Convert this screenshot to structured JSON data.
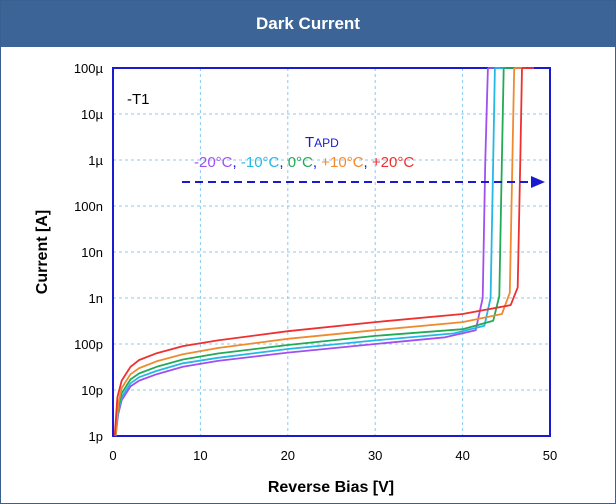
{
  "header": {
    "title": "Dark Current"
  },
  "chart_data": {
    "type": "line",
    "title": "Dark Current",
    "xlabel": "Reverse Bias [V]",
    "ylabel": "Current [A]",
    "xlim": [
      0,
      50
    ],
    "ylim": [
      1e-12,
      0.0001
    ],
    "y_scale": "log",
    "grid": true,
    "x_ticks": [
      0,
      10,
      20,
      30,
      40,
      50
    ],
    "y_ticks": [
      {
        "value": 0.0001,
        "label": "100µ"
      },
      {
        "value": 1e-05,
        "label": "10µ"
      },
      {
        "value": 1e-06,
        "label": "1µ"
      },
      {
        "value": 1e-07,
        "label": "100n"
      },
      {
        "value": 1e-08,
        "label": "10n"
      },
      {
        "value": 1e-09,
        "label": "1n"
      },
      {
        "value": 1e-10,
        "label": "100p"
      },
      {
        "value": 1e-11,
        "label": "10p"
      },
      {
        "value": 1e-12,
        "label": "1p"
      }
    ],
    "annotations": {
      "model": "-T1",
      "legend_title_main": "T",
      "legend_title_sub": "APD",
      "arrow": "increasing temperature shifts breakdown to higher voltage"
    },
    "series": [
      {
        "name": "-20°C",
        "color": "#a050f0",
        "x": [
          0.3,
          0.6,
          1,
          2,
          3,
          5,
          8,
          12,
          20,
          30,
          38,
          41.5,
          42.3,
          42.6,
          42.9
        ],
        "y": [
          1e-12,
          3e-12,
          6e-12,
          1.2e-11,
          1.6e-11,
          2.2e-11,
          3.2e-11,
          4.3e-11,
          6.5e-11,
          1e-10,
          1.4e-10,
          2e-10,
          1e-09,
          1e-06,
          0.0001
        ]
      },
      {
        "name": "-10°C",
        "color": "#25b8e6",
        "x": [
          0.3,
          0.6,
          1,
          2,
          3,
          5,
          8,
          12,
          20,
          30,
          39,
          42.5,
          43.2,
          43.5,
          43.7
        ],
        "y": [
          1e-12,
          3.5e-12,
          7e-12,
          1.4e-11,
          1.9e-11,
          2.6e-11,
          3.8e-11,
          5e-11,
          7.8e-11,
          1.2e-10,
          1.7e-10,
          2.5e-10,
          1e-09,
          1e-06,
          0.0001
        ]
      },
      {
        "name": "0°C",
        "color": "#22aa55",
        "x": [
          0.3,
          0.6,
          1,
          2,
          3,
          5,
          8,
          12,
          20,
          30,
          40,
          43.5,
          44.2,
          44.5,
          44.7
        ],
        "y": [
          1e-12,
          4e-12,
          8.5e-12,
          1.7e-11,
          2.3e-11,
          3.2e-11,
          4.6e-11,
          6.2e-11,
          9.5e-11,
          1.5e-10,
          2.1e-10,
          3.2e-10,
          1.1e-09,
          1e-06,
          0.0001
        ]
      },
      {
        "name": "+10°C",
        "color": "#f08a30",
        "x": [
          0.3,
          0.6,
          1,
          2,
          3,
          5,
          8,
          12,
          20,
          30,
          40,
          44.5,
          45.4,
          45.7,
          45.9
        ],
        "y": [
          1e-12,
          5e-12,
          1.1e-11,
          2.2e-11,
          3e-11,
          4.2e-11,
          6e-11,
          8.2e-11,
          1.3e-10,
          2e-10,
          3e-10,
          4.5e-10,
          1.3e-09,
          1e-06,
          0.0001
        ]
      },
      {
        "name": "+20°C",
        "color": "#ee3030",
        "x": [
          0.2,
          0.5,
          1,
          2,
          3,
          5,
          8,
          12,
          20,
          30,
          40,
          45.5,
          46.3,
          46.6,
          46.8
        ],
        "y": [
          1e-12,
          7e-12,
          1.6e-11,
          3.2e-11,
          4.5e-11,
          6.3e-11,
          9e-11,
          1.2e-10,
          1.9e-10,
          3e-10,
          4.5e-10,
          7e-10,
          1.7e-09,
          1e-06,
          0.0001
        ]
      }
    ]
  }
}
